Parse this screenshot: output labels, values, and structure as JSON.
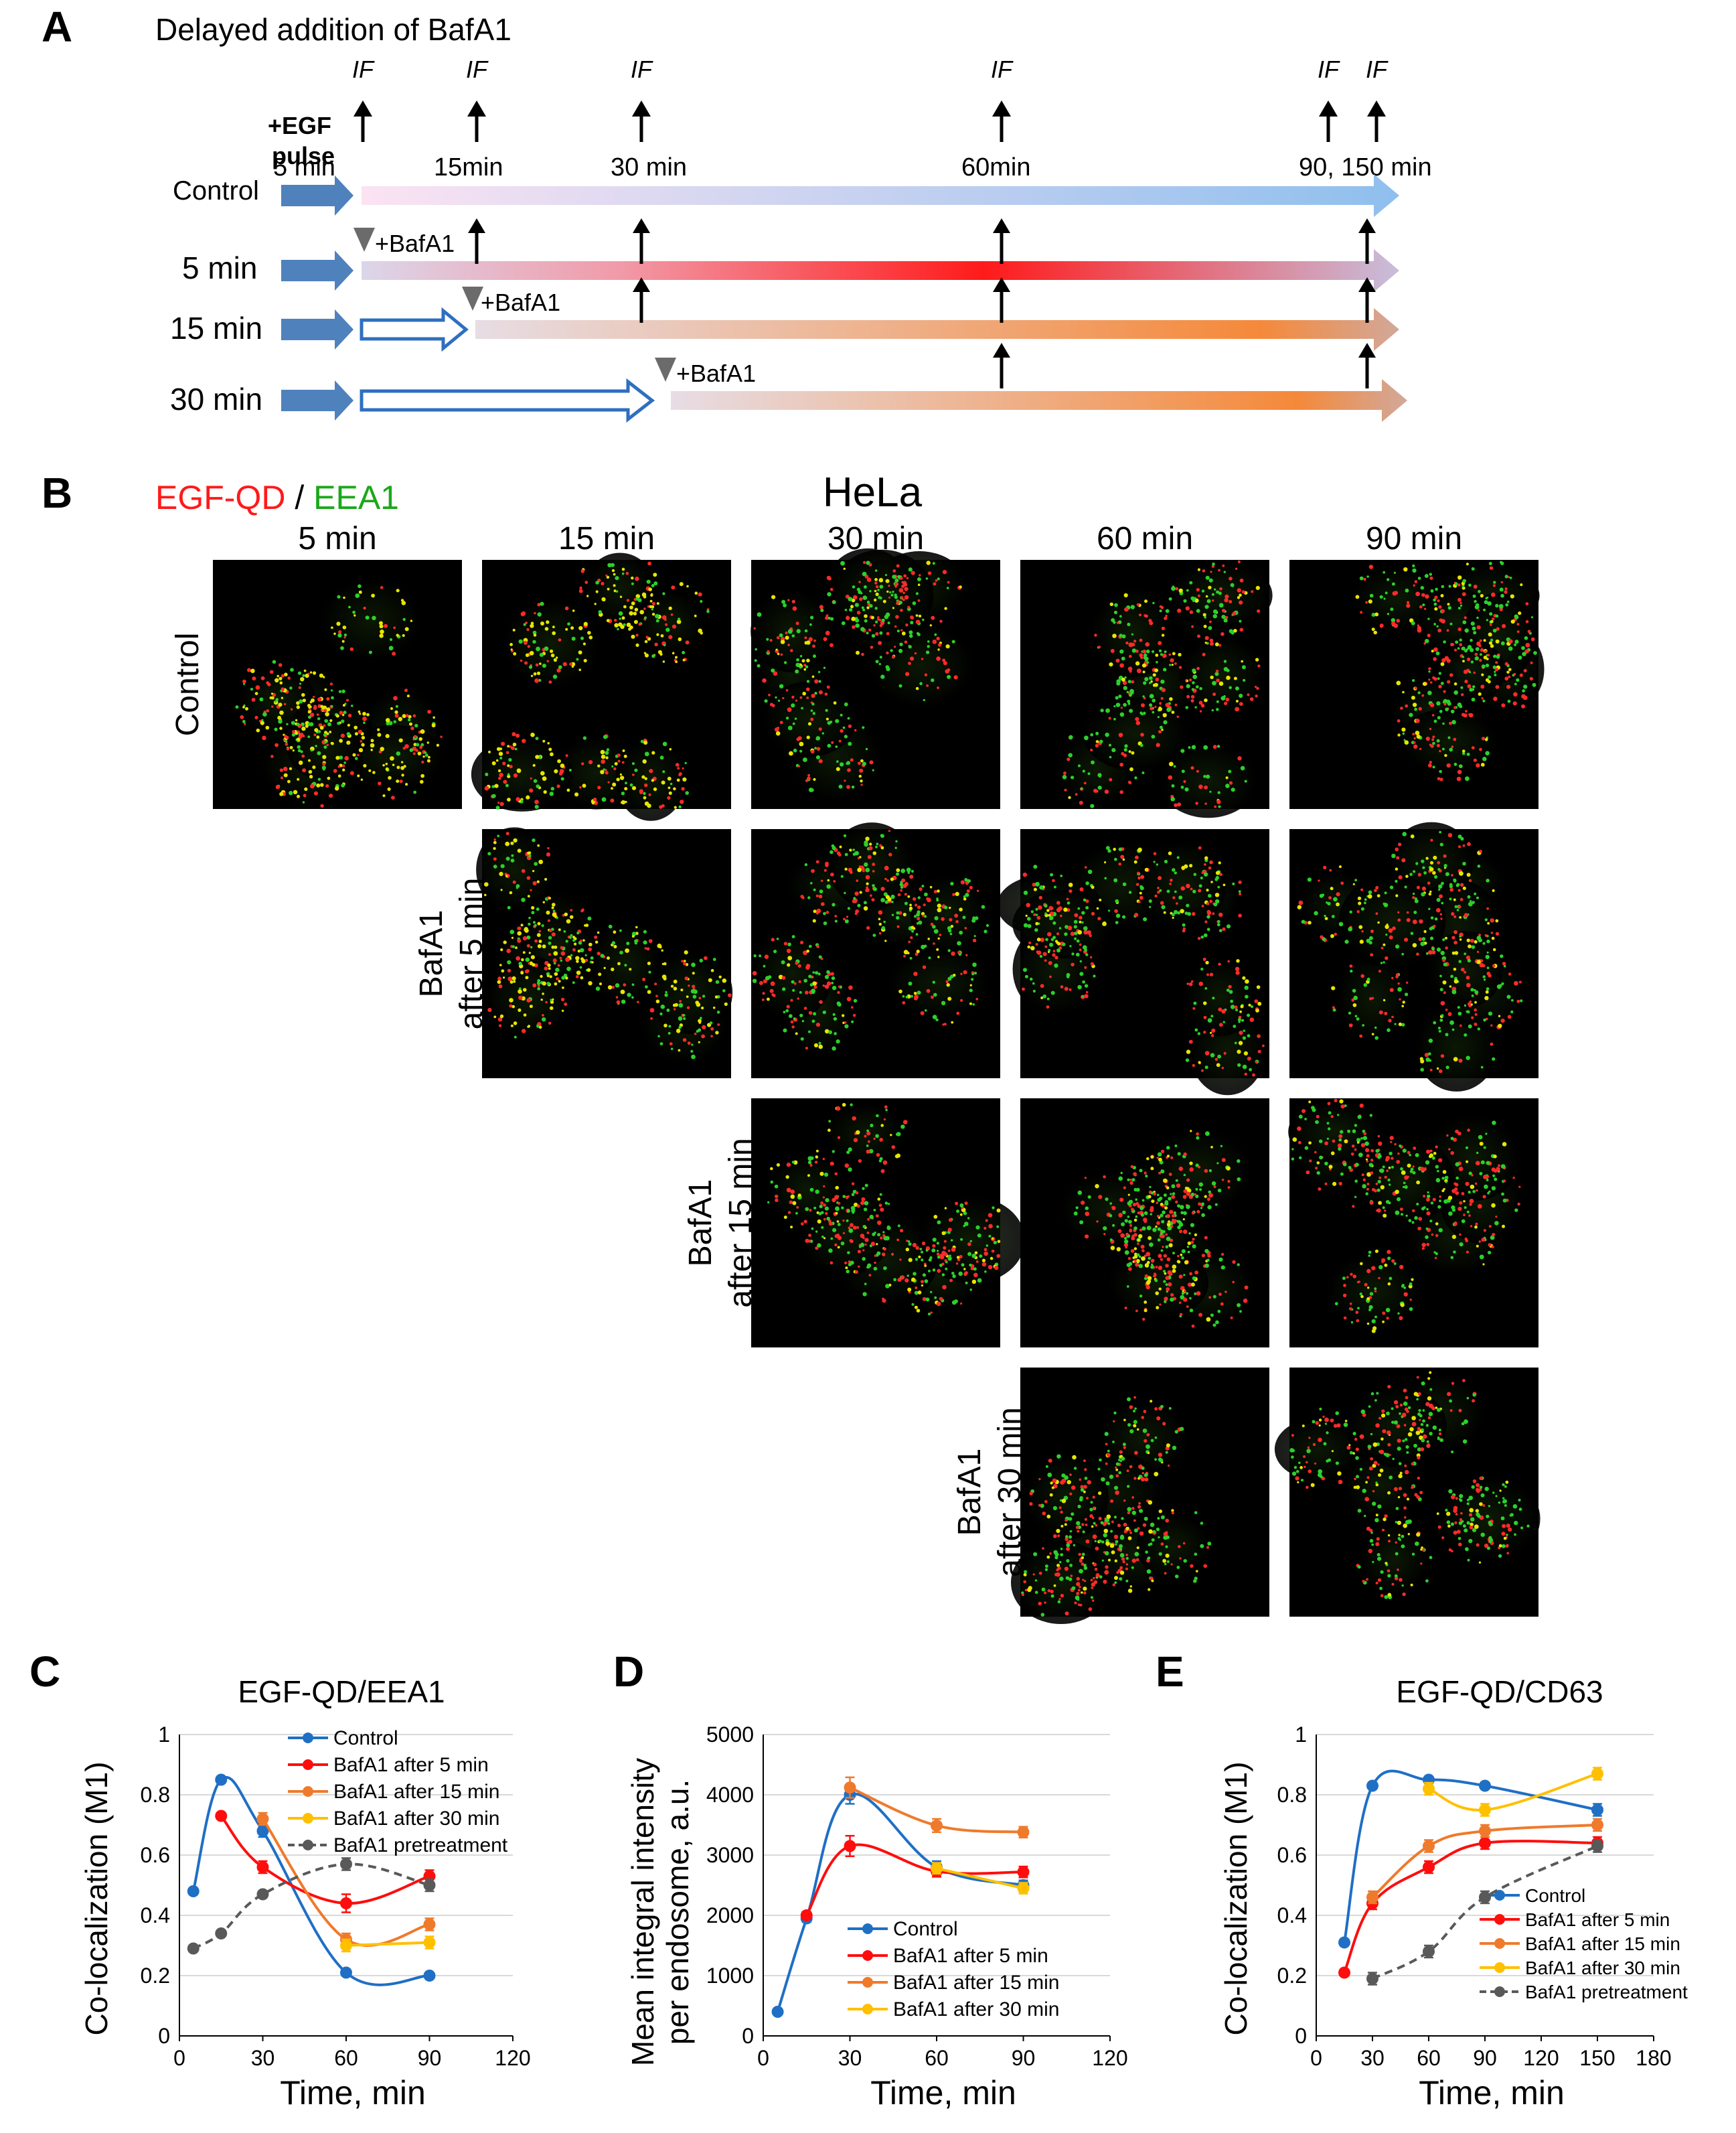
{
  "panel_a": {
    "letter": "A",
    "title": "Delayed addition of BafA1",
    "egf_label_1": "+EGF",
    "egf_label_2": "pulse",
    "if_label": "IF",
    "time_labels": [
      "5 min",
      "15min",
      "30 min",
      "60min",
      "90, 150 min"
    ],
    "rows": [
      "Control",
      "5 min",
      "15 min",
      "30 min"
    ],
    "bafa1_label": "+BafA1",
    "colors": {
      "blue_arrow": "#4f81bd",
      "control_end": "#8fbfee",
      "red": "#ff1a1a",
      "orange": "#f5893a"
    }
  },
  "panel_b": {
    "letter": "B",
    "legend_red": "EGF-QD",
    "legend_sep": " / ",
    "legend_green": "EEA1",
    "cell_line": "HeLa",
    "columns": [
      "5 min",
      "15 min",
      "30 min",
      "60 min",
      "90 min"
    ],
    "row_labels": [
      {
        "line1": "Control",
        "line2": ""
      },
      {
        "line1": "BafA1",
        "line2": "after 5 min"
      },
      {
        "line1": "BafA1",
        "line2": "after 15 min"
      },
      {
        "line1": "BafA1",
        "line2": "after 30 min"
      }
    ],
    "colors": {
      "red": "#ff2a2a",
      "green": "#2bd12b",
      "yellow": "#e6e600"
    }
  },
  "chart_data": [
    {
      "panel": "C",
      "type": "line",
      "title": "EGF-QD/EEA1",
      "xlabel": "Time, min",
      "ylabel": "Co-localization (M1)",
      "xlim": [
        0,
        120
      ],
      "ylim": [
        0,
        1
      ],
      "xticks": [
        "0",
        "30",
        "60",
        "90",
        "120"
      ],
      "yticks": [
        "0",
        "0.2",
        "0.4",
        "0.6",
        "0.8",
        "1"
      ],
      "legend_position": "top-right",
      "series": [
        {
          "name": "Control",
          "color": "#1f6fc5",
          "dashed": false,
          "x": [
            5,
            15,
            30,
            60,
            90
          ],
          "y": [
            0.48,
            0.85,
            0.68,
            0.21,
            0.2
          ],
          "err": [
            0.01,
            0.01,
            0.02,
            0.01,
            0.01
          ]
        },
        {
          "name": "BafA1 after 5 min",
          "color": "#ff0d0d",
          "dashed": false,
          "x": [
            15,
            30,
            60,
            90
          ],
          "y": [
            0.73,
            0.56,
            0.44,
            0.53
          ],
          "err": [
            0.01,
            0.02,
            0.03,
            0.02
          ]
        },
        {
          "name": "BafA1 after 15 min",
          "color": "#ef7a2c",
          "dashed": false,
          "x": [
            30,
            60,
            90
          ],
          "y": [
            0.72,
            0.32,
            0.37
          ],
          "err": [
            0.02,
            0.02,
            0.02
          ]
        },
        {
          "name": "BafA1 after 30 min",
          "color": "#ffc000",
          "dashed": false,
          "x": [
            60,
            90
          ],
          "y": [
            0.3,
            0.31
          ],
          "err": [
            0.02,
            0.02
          ]
        },
        {
          "name": "BafA1 pretreatment",
          "color": "#595959",
          "dashed": true,
          "x": [
            5,
            15,
            30,
            60,
            90
          ],
          "y": [
            0.29,
            0.34,
            0.47,
            0.57,
            0.5
          ],
          "err": [
            0.01,
            0.01,
            0.01,
            0.02,
            0.02
          ]
        }
      ]
    },
    {
      "panel": "D",
      "type": "line",
      "title": "",
      "xlabel": "Time, min",
      "ylabel": "Mean integral intensity per endosome, a.u.",
      "ylabel_line1": "Mean integral intensity",
      "ylabel_line2": "per endosome, a.u.",
      "xlim": [
        0,
        120
      ],
      "ylim": [
        0,
        5000
      ],
      "xticks": [
        "0",
        "30",
        "60",
        "90",
        "120"
      ],
      "yticks": [
        "0",
        "1000",
        "2000",
        "3000",
        "4000",
        "5000"
      ],
      "legend_position": "bottom-right",
      "series": [
        {
          "name": "Control",
          "color": "#1f6fc5",
          "dashed": false,
          "x": [
            5,
            15,
            30,
            60,
            90
          ],
          "y": [
            400,
            1950,
            4000,
            2800,
            2500
          ],
          "err": [
            20,
            60,
            150,
            100,
            80
          ]
        },
        {
          "name": "BafA1 after 5 min",
          "color": "#ff0d0d",
          "dashed": false,
          "x": [
            15,
            30,
            60,
            90
          ],
          "y": [
            2000,
            3150,
            2730,
            2720
          ],
          "err": [
            60,
            170,
            90,
            90
          ]
        },
        {
          "name": "BafA1 after 15 min",
          "color": "#ef7a2c",
          "dashed": false,
          "x": [
            30,
            60,
            90
          ],
          "y": [
            4120,
            3490,
            3380
          ],
          "err": [
            170,
            110,
            90
          ]
        },
        {
          "name": "BafA1 after 30 min",
          "color": "#ffc000",
          "dashed": false,
          "x": [
            60,
            90
          ],
          "y": [
            2780,
            2450
          ],
          "err": [
            90,
            90
          ]
        }
      ]
    },
    {
      "panel": "E",
      "type": "line",
      "title": "EGF-QD/CD63",
      "xlabel": "Time, min",
      "ylabel": "Co-localization (M1)",
      "xlim": [
        0,
        180
      ],
      "ylim": [
        0,
        1
      ],
      "xticks": [
        "0",
        "30",
        "60",
        "90",
        "120",
        "150",
        "180"
      ],
      "yticks": [
        "0",
        "0.2",
        "0.4",
        "0.6",
        "0.8",
        "1"
      ],
      "legend_position": "bottom-right",
      "series": [
        {
          "name": "Control",
          "color": "#1f6fc5",
          "dashed": false,
          "x": [
            15,
            30,
            60,
            90,
            150
          ],
          "y": [
            0.31,
            0.83,
            0.85,
            0.83,
            0.75
          ],
          "err": [
            0.01,
            0.01,
            0.01,
            0.01,
            0.02
          ]
        },
        {
          "name": "BafA1 after 5 min",
          "color": "#ff0d0d",
          "dashed": false,
          "x": [
            15,
            30,
            60,
            90,
            150
          ],
          "y": [
            0.21,
            0.44,
            0.56,
            0.64,
            0.64
          ],
          "err": [
            0.01,
            0.02,
            0.02,
            0.02,
            0.02
          ]
        },
        {
          "name": "BafA1 after 15 min",
          "color": "#ef7a2c",
          "dashed": false,
          "x": [
            30,
            60,
            90,
            150
          ],
          "y": [
            0.46,
            0.63,
            0.68,
            0.7
          ],
          "err": [
            0.02,
            0.02,
            0.02,
            0.02
          ]
        },
        {
          "name": "BafA1 after 30 min",
          "color": "#ffc000",
          "dashed": false,
          "x": [
            60,
            90,
            150
          ],
          "y": [
            0.82,
            0.75,
            0.87
          ],
          "err": [
            0.02,
            0.02,
            0.02
          ]
        },
        {
          "name": "BafA1 pretreatment",
          "color": "#595959",
          "dashed": true,
          "x": [
            30,
            60,
            90,
            150
          ],
          "y": [
            0.19,
            0.28,
            0.46,
            0.63
          ],
          "err": [
            0.02,
            0.02,
            0.02,
            0.02
          ]
        }
      ]
    }
  ]
}
